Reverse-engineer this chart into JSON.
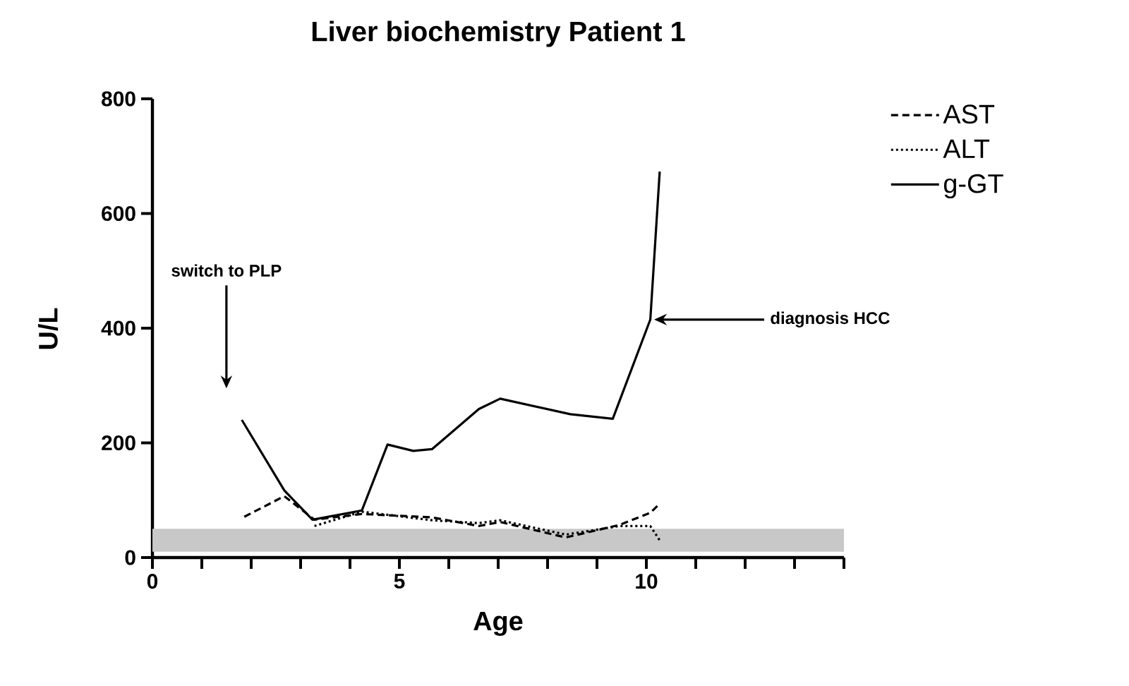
{
  "chart_data": {
    "type": "line",
    "title": "Liver biochemistry Patient 1",
    "xlabel": "Age",
    "ylabel": "U/L",
    "series": [
      {
        "name": "AST",
        "color": "#000000",
        "line_style": "dashed",
        "x": [
          1.86,
          2.67,
          3.28,
          4.24,
          5.66,
          6.61,
          7.04,
          8.37,
          9.46,
          10.08,
          10.27
        ],
        "values": [
          71,
          107,
          66,
          76,
          70,
          55,
          62,
          35,
          57,
          78,
          94
        ]
      },
      {
        "name": "ALT",
        "color": "#000000",
        "line_style": "dotted",
        "x": [
          3.28,
          4.24,
          5.66,
          6.61,
          7.04,
          8.37,
          9.46,
          10.08,
          10.27
        ],
        "values": [
          55,
          80,
          65,
          60,
          65,
          40,
          55,
          55,
          30
        ]
      },
      {
        "name": "g-GT",
        "color": "#000000",
        "line_style": "solid",
        "x": [
          1.81,
          2.67,
          3.24,
          4.24,
          4.76,
          5.28,
          5.66,
          6.61,
          7.04,
          8.46,
          9.32,
          10.08,
          10.27
        ],
        "values": [
          240,
          117,
          66,
          82,
          197,
          186,
          189,
          259,
          277,
          250,
          242,
          415,
          673
        ]
      }
    ],
    "bands": [
      {
        "axis": "y",
        "from": 10,
        "to": 50,
        "color": "#c8c8c8"
      }
    ],
    "annotations": [
      "switch to PLP",
      {
        "text": "diagnosis  HCC",
        "x": 10.1,
        "y": 415
      }
    ],
    "xlim": [
      0,
      14
    ],
    "ylim": [
      0,
      800
    ],
    "xticks": [
      0,
      {
        "value": 1,
        "label": null
      },
      {
        "value": 2,
        "label": null
      },
      {
        "value": 3,
        "label": null
      },
      {
        "value": 4,
        "label": null
      },
      5,
      {
        "value": 6,
        "label": null
      },
      {
        "value": 7,
        "label": null
      },
      {
        "value": 8,
        "label": null
      },
      {
        "value": 9,
        "label": null
      },
      10,
      {
        "value": 11,
        "label": null
      },
      {
        "value": 12,
        "label": null
      },
      {
        "value": 13,
        "label": null
      },
      {
        "value": 14,
        "label": null
      }
    ],
    "yticks": [
      0,
      200,
      400,
      600,
      800
    ],
    "grid": false,
    "legend": "right",
    "marker": "none"
  }
}
